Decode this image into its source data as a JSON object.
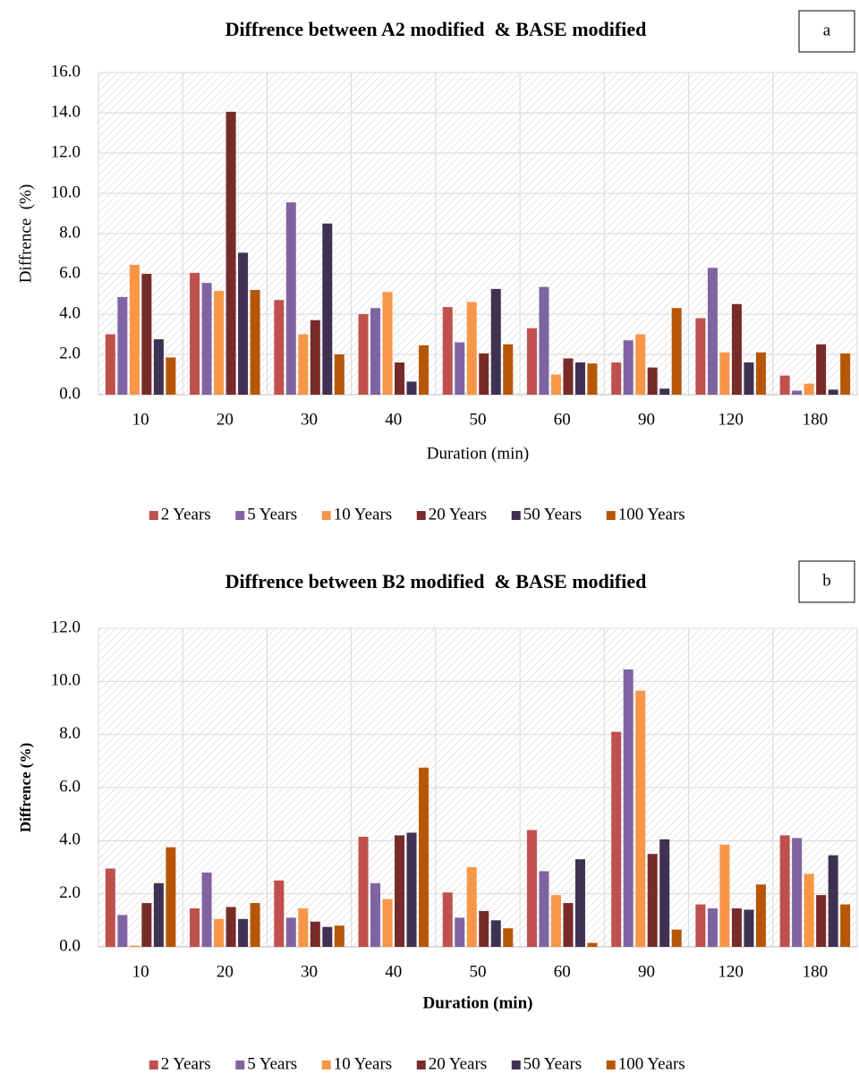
{
  "chart_data": [
    {
      "type": "bar",
      "panel_label": "a",
      "title": "Diffrence between A2 modified  & BASE modified",
      "x_label": "Duration (min)",
      "y_label": "Diffrence  (%)",
      "y_label_bold": false,
      "categories": [
        "10",
        "20",
        "30",
        "40",
        "50",
        "60",
        "90",
        "120",
        "180"
      ],
      "series": [
        {
          "name": "2 Years",
          "color": "#c0504d",
          "values": [
            3.0,
            6.05,
            4.7,
            4.0,
            4.35,
            3.3,
            1.6,
            3.8,
            0.95
          ]
        },
        {
          "name": "5 Years",
          "color": "#8064a2",
          "values": [
            4.85,
            5.55,
            9.55,
            4.3,
            2.6,
            5.35,
            2.7,
            6.3,
            0.2
          ]
        },
        {
          "name": "10 Years",
          "color": "#f79646",
          "values": [
            6.45,
            5.15,
            3.0,
            5.1,
            4.6,
            1.0,
            3.0,
            2.1,
            0.55
          ]
        },
        {
          "name": "20 Years",
          "color": "#772c2a",
          "values": [
            6.0,
            14.05,
            3.7,
            1.6,
            2.05,
            1.8,
            1.35,
            4.5,
            2.5
          ]
        },
        {
          "name": "50 Years",
          "color": "#3f3151",
          "values": [
            2.75,
            7.05,
            8.5,
            0.65,
            5.25,
            1.6,
            0.3,
            1.6,
            0.25
          ]
        },
        {
          "name": "100 Years",
          "color": "#b65708",
          "values": [
            1.85,
            5.2,
            2.0,
            2.45,
            2.5,
            1.55,
            4.3,
            2.1,
            2.05
          ]
        }
      ],
      "ylim": [
        0,
        16
      ],
      "yticks": [
        {
          "value": 0,
          "label": "0.0"
        },
        {
          "value": 2,
          "label": "2.0"
        },
        {
          "value": 4,
          "label": "4.0"
        },
        {
          "value": 6,
          "label": "6.0"
        },
        {
          "value": 8,
          "label": "8.0"
        },
        {
          "value": 10,
          "label": "10.0"
        },
        {
          "value": 12,
          "label": "12.0"
        },
        {
          "value": 14,
          "label": "14.0"
        },
        {
          "value": 16,
          "label": "16.0"
        }
      ],
      "grid": true,
      "legend": "bottom"
    },
    {
      "type": "bar",
      "panel_label": "b",
      "title": "Diffrence between B2 modified  & BASE modified",
      "x_label": "Duration (min)",
      "y_label": "Diffrence (%)",
      "y_label_bold": true,
      "categories": [
        "10",
        "20",
        "30",
        "40",
        "50",
        "60",
        "90",
        "120",
        "180"
      ],
      "series": [
        {
          "name": "2 Years",
          "color": "#c0504d",
          "values": [
            2.95,
            1.45,
            2.5,
            4.15,
            2.05,
            4.4,
            8.1,
            1.6,
            4.2
          ]
        },
        {
          "name": "5 Years",
          "color": "#8064a2",
          "values": [
            1.2,
            2.8,
            1.1,
            2.4,
            1.1,
            2.85,
            10.45,
            1.45,
            4.1
          ]
        },
        {
          "name": "10 Years",
          "color": "#f79646",
          "values": [
            0.05,
            1.05,
            1.45,
            1.8,
            3.0,
            1.95,
            9.65,
            3.85,
            2.75
          ]
        },
        {
          "name": "20 Years",
          "color": "#772c2a",
          "values": [
            1.65,
            1.5,
            0.95,
            4.2,
            1.35,
            1.65,
            3.5,
            1.45,
            1.95
          ]
        },
        {
          "name": "50 Years",
          "color": "#3f3151",
          "values": [
            2.4,
            1.05,
            0.75,
            4.3,
            1.0,
            3.3,
            4.05,
            1.4,
            3.45
          ]
        },
        {
          "name": "100 Years",
          "color": "#b65708",
          "values": [
            3.75,
            1.65,
            0.8,
            6.75,
            0.7,
            0.15,
            0.65,
            2.35,
            1.6
          ]
        }
      ],
      "ylim": [
        0,
        12
      ],
      "yticks": [
        {
          "value": 0,
          "label": "0.0"
        },
        {
          "value": 2,
          "label": "2.0"
        },
        {
          "value": 4,
          "label": "4.0"
        },
        {
          "value": 6,
          "label": "6.0"
        },
        {
          "value": 8,
          "label": "8.0"
        },
        {
          "value": 10,
          "label": "10.0"
        },
        {
          "value": 12,
          "label": "12.0"
        }
      ],
      "grid": true,
      "legend": "bottom"
    }
  ]
}
